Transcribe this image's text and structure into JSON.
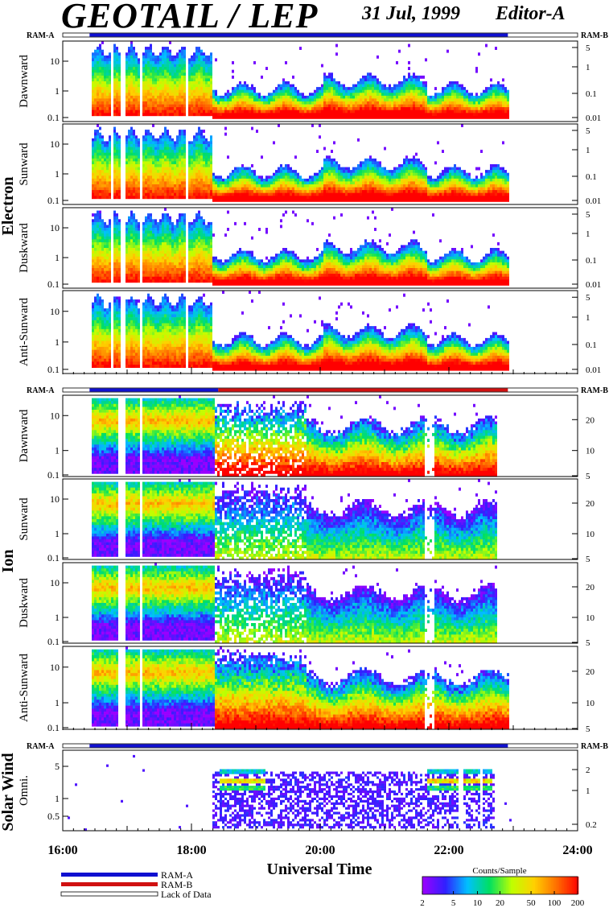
{
  "title": "GEOTAIL / LEP",
  "date": "31 Jul, 1999",
  "editor": "Editor-A",
  "ram_a": "RAM-A",
  "ram_b": "RAM-B",
  "xlabel": "Universal Time",
  "legend": {
    "ram_a": "RAM-A",
    "ram_b": "RAM-B",
    "lack": "Lack of Data"
  },
  "colorbar": {
    "title": "Counts/Sample",
    "ticks": [
      "2",
      "5",
      "10",
      "20",
      "50",
      "100",
      "200"
    ]
  },
  "groups": [
    {
      "name": "Electron",
      "panels": [
        "Dawnward",
        "Sunward",
        "Duskward",
        "Anti-Sunward"
      ]
    },
    {
      "name": "Ion",
      "panels": [
        "Dawnward",
        "Sunward",
        "Duskward",
        "Anti-Sunward"
      ]
    },
    {
      "name": "Solar Wind",
      "panels": [
        "Omni."
      ]
    }
  ],
  "chart_data": {
    "type": "heatmap",
    "x_ticks": [
      "16:00",
      "18:00",
      "20:00",
      "22:00",
      "24:00"
    ],
    "xlim": [
      "16:00",
      "24:00"
    ],
    "data_range": [
      "16:25",
      "22:55"
    ],
    "electron_left_ticks": [
      "10",
      "1",
      "0.1"
    ],
    "electron_right_ticks": [
      "5",
      "1",
      "0.1",
      "0.01"
    ],
    "ion_left_ticks": [
      "10",
      "1",
      "0.1"
    ],
    "ion_right_ticks": [
      "20",
      "10",
      "5"
    ],
    "solar_left_ticks": [
      "5",
      "1",
      "0.5"
    ],
    "solar_right_ticks": [
      "2",
      "1",
      "0.2"
    ],
    "electron_mode_bar": [
      {
        "mode": "RAM-A",
        "start": "16:25",
        "end": "22:55"
      }
    ],
    "ion_mode_bar": [
      {
        "mode": "RAM-A",
        "start": "16:25",
        "end": "18:25"
      },
      {
        "mode": "RAM-B",
        "start": "18:25",
        "end": "22:55"
      }
    ],
    "solar_mode_bar": [
      {
        "mode": "RAM-A",
        "start": "16:25",
        "end": "22:55"
      }
    ],
    "colors": {
      "ram_a": "#1010d0",
      "ram_b": "#d01010",
      "scale": [
        "#9a00ff",
        "#3020ff",
        "#00c0ff",
        "#00e060",
        "#c0ff00",
        "#ffd000",
        "#ff7000",
        "#ff0000"
      ]
    }
  }
}
